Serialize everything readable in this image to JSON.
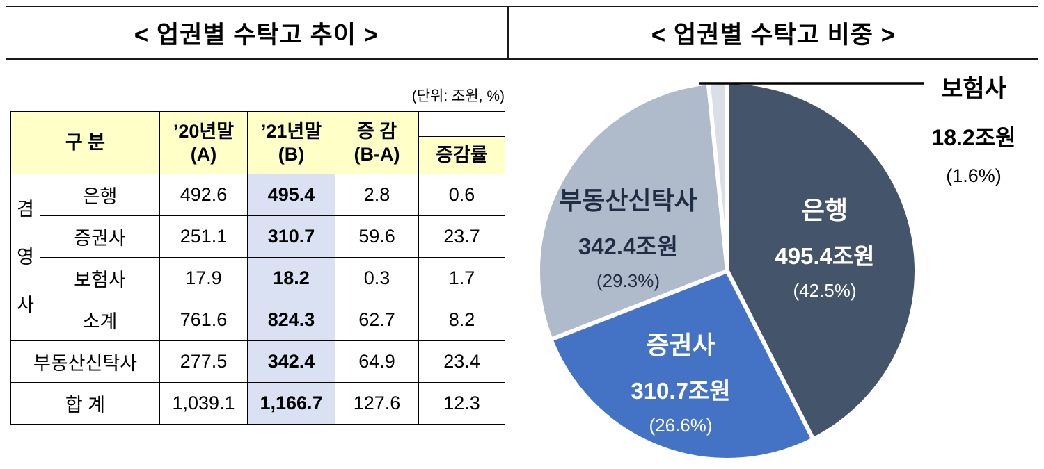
{
  "page": {
    "left_title": "< 업권별 수탁고 추이 >",
    "right_title": "< 업권별 수탁고 비중 >"
  },
  "table": {
    "unit_note": "(단위: 조원, %)",
    "colors": {
      "header_bg": "#FFFFC8",
      "highlight_col_bg": "#D9E1F2"
    },
    "header": {
      "category": "구 분",
      "col_a_line1": "’20년말",
      "col_a_line2": "(A)",
      "col_b_line1": "’21년말",
      "col_b_line2": "(B)",
      "col_diff_line1": "증 감",
      "col_diff_line2": "(B-A)",
      "col_rate": "증감률"
    },
    "group_label": "겸영사",
    "rows": [
      {
        "label": "은행",
        "a": "492.6",
        "b": "495.4",
        "diff": "2.8",
        "rate": "0.6"
      },
      {
        "label": "증권사",
        "a": "251.1",
        "b": "310.7",
        "diff": "59.6",
        "rate": "23.7"
      },
      {
        "label": "보험사",
        "a": "17.9",
        "b": "18.2",
        "diff": "0.3",
        "rate": "1.7"
      },
      {
        "label": "소계",
        "a": "761.6",
        "b": "824.3",
        "diff": "62.7",
        "rate": "8.2"
      },
      {
        "label": "부동산신탁사",
        "a": "277.5",
        "b": "342.4",
        "diff": "64.9",
        "rate": "23.4"
      },
      {
        "label": "합 계",
        "a": "1,039.1",
        "b": "1,166.7",
        "diff": "127.6",
        "rate": "12.3"
      }
    ]
  },
  "chart_data": [
    {
      "type": "table",
      "title": "< 업권별 수탁고 추이 >",
      "unit": "조원, %",
      "columns": [
        "구 분",
        "’20년말 (A)",
        "’21년말 (B)",
        "증 감 (B-A)",
        "증감률"
      ],
      "rows": [
        {
          "group": "겸영사",
          "category": "은행",
          "end_2020": 492.6,
          "end_2021": 495.4,
          "change": 2.8,
          "change_rate": 0.6
        },
        {
          "group": "겸영사",
          "category": "증권사",
          "end_2020": 251.1,
          "end_2021": 310.7,
          "change": 59.6,
          "change_rate": 23.7
        },
        {
          "group": "겸영사",
          "category": "보험사",
          "end_2020": 17.9,
          "end_2021": 18.2,
          "change": 0.3,
          "change_rate": 1.7
        },
        {
          "group": "겸영사",
          "category": "소계",
          "end_2020": 761.6,
          "end_2021": 824.3,
          "change": 62.7,
          "change_rate": 8.2
        },
        {
          "group": null,
          "category": "부동산신탁사",
          "end_2020": 277.5,
          "end_2021": 342.4,
          "change": 64.9,
          "change_rate": 23.4
        },
        {
          "group": null,
          "category": "합 계",
          "end_2020": 1039.1,
          "end_2021": 1166.7,
          "change": 127.6,
          "change_rate": 12.3
        }
      ]
    },
    {
      "type": "pie",
      "title": "< 업권별 수탁고 비중 >",
      "legend": "none",
      "slices": [
        {
          "key": "bank",
          "name": "은행",
          "value_trillion_krw": 495.4,
          "value_label": "495.4조원",
          "pct": 42.5,
          "pct_label": "(42.5%)",
          "color": "#44546A",
          "text_color": "#FFFFFF"
        },
        {
          "key": "securities",
          "name": "증권사",
          "value_trillion_krw": 310.7,
          "value_label": "310.7조원",
          "pct": 26.6,
          "pct_label": "(26.6%)",
          "color": "#4472C4",
          "text_color": "#FFFFFF"
        },
        {
          "key": "realestate-trust",
          "name": "부동산신탁사",
          "value_trillion_krw": 342.4,
          "value_label": "342.4조원",
          "pct": 29.3,
          "pct_label": "(29.3%)",
          "color": "#AFBACB",
          "text_color": "#1F2D45"
        },
        {
          "key": "insurance",
          "name": "보험사",
          "value_trillion_krw": 18.2,
          "value_label": "18.2조원",
          "pct": 1.6,
          "pct_label": "(1.6%)",
          "color": "#D9DEE7",
          "text_color": "#000000"
        }
      ]
    }
  ]
}
